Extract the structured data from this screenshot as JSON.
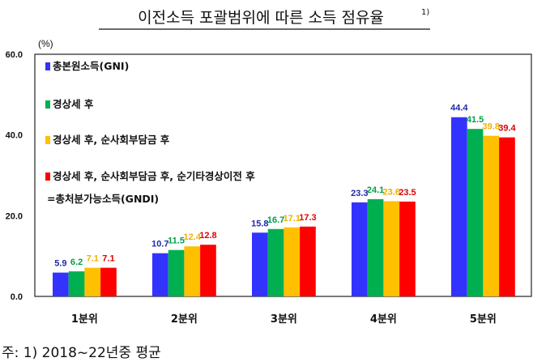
{
  "chart_data": {
    "type": "bar",
    "title": "이전소득 포괄범위에 따른 소득 점유율",
    "title_superscript": "1)",
    "ylabel": "(%)",
    "ylim": [
      0,
      60
    ],
    "yticks": [
      "0.0",
      "20.0",
      "40.0",
      "60.0"
    ],
    "ytick_values": [
      0,
      20,
      40,
      60
    ],
    "grid": false,
    "legend_position": "top-left",
    "categories": [
      "1분위",
      "2분위",
      "3분위",
      "4분위",
      "5분위"
    ],
    "series": [
      {
        "name": "총본원소득(GNI)",
        "color": "#3333ff",
        "label_color": "#1f2aa8",
        "values": [
          5.9,
          10.7,
          15.8,
          23.3,
          44.4
        ]
      },
      {
        "name": "경상세 후",
        "color": "#00b050",
        "label_color": "#00a04a",
        "values": [
          6.2,
          11.5,
          16.7,
          24.1,
          41.5
        ]
      },
      {
        "name": "경상세 후, 순사회부담금 후",
        "color": "#ffc000",
        "label_color": "#f0b000",
        "values": [
          7.1,
          12.4,
          17.1,
          23.6,
          39.8
        ]
      },
      {
        "name": "경상세 후, 순사회부담금 후, 순기타경상이전 후",
        "name_line2": "=총처분가능소득(GNDI)",
        "color": "#ff0000",
        "label_color": "#e00000",
        "values": [
          7.1,
          12.8,
          17.3,
          23.5,
          39.4
        ]
      }
    ],
    "footnote": "주: 1) 2018~22년중 평균"
  }
}
